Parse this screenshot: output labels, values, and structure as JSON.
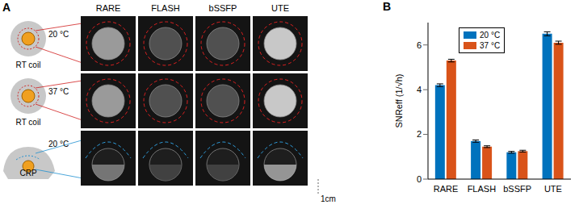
{
  "panel_a": {
    "label": "A",
    "columns": [
      "RARE",
      "FLASH",
      "bSSFP",
      "UTE"
    ],
    "rows": [
      {
        "temperature": "20 °C",
        "coil": "RT coil"
      },
      {
        "temperature": "37 °C",
        "coil": "RT coil"
      },
      {
        "temperature": "20 °C",
        "coil": "CRP"
      }
    ],
    "scale_bar": "1cm"
  },
  "panel_label": "B",
  "chart_data": {
    "type": "bar",
    "categories": [
      "RARE",
      "FLASH",
      "bSSFP",
      "UTE"
    ],
    "series": [
      {
        "name": "20 °C",
        "color": "#0072bd",
        "values": [
          4.2,
          1.7,
          1.2,
          6.5
        ],
        "errors": [
          0.06,
          0.05,
          0.04,
          0.09
        ]
      },
      {
        "name": "37 °C",
        "color": "#d95319",
        "values": [
          5.3,
          1.45,
          1.25,
          6.1
        ],
        "errors": [
          0.06,
          0.04,
          0.04,
          0.07
        ]
      }
    ],
    "y_label": "SNReff (1/√h)",
    "ylim": [
      0,
      7
    ],
    "yticks": [
      0,
      2,
      4,
      6
    ],
    "legend": "top"
  }
}
